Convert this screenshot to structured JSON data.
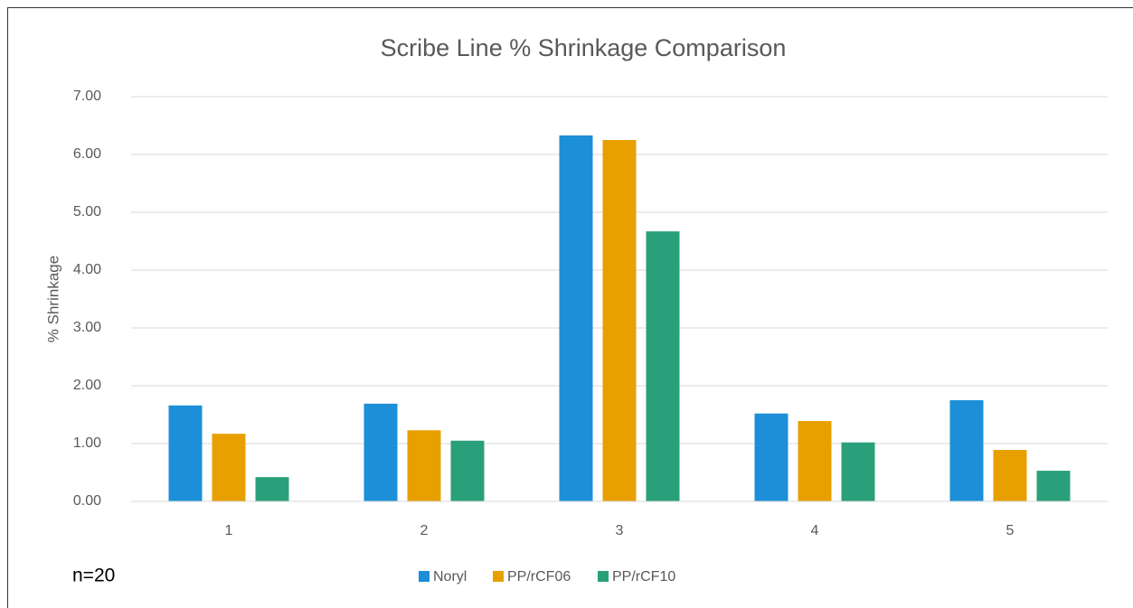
{
  "chart_data": {
    "type": "bar",
    "title": "Scribe Line % Shrinkage Comparison",
    "y_label": "% Shrinkage",
    "annotation": "n=20",
    "categories": [
      "1",
      "2",
      "3",
      "4",
      "5"
    ],
    "series": [
      {
        "name": "Noryl",
        "color": "#1c8fd8",
        "values": [
          1.66,
          1.69,
          6.33,
          1.52,
          1.75
        ]
      },
      {
        "name": "PP/rCF06",
        "color": "#e8a000",
        "values": [
          1.17,
          1.23,
          6.25,
          1.39,
          0.89
        ]
      },
      {
        "name": "PP/rCF10",
        "color": "#2aa07a",
        "values": [
          0.42,
          1.05,
          4.67,
          1.02,
          0.53
        ]
      }
    ],
    "ylim": [
      0,
      7
    ],
    "yticks": [
      {
        "value": 0,
        "label": "0.00"
      },
      {
        "value": 1,
        "label": "1.00"
      },
      {
        "value": 2,
        "label": "2.00"
      },
      {
        "value": 3,
        "label": "3.00"
      },
      {
        "value": 4,
        "label": "4.00"
      },
      {
        "value": 5,
        "label": "5.00"
      },
      {
        "value": 6,
        "label": "6.00"
      },
      {
        "value": 7,
        "label": "7.00"
      }
    ],
    "grid": true,
    "legend": "bottom"
  }
}
